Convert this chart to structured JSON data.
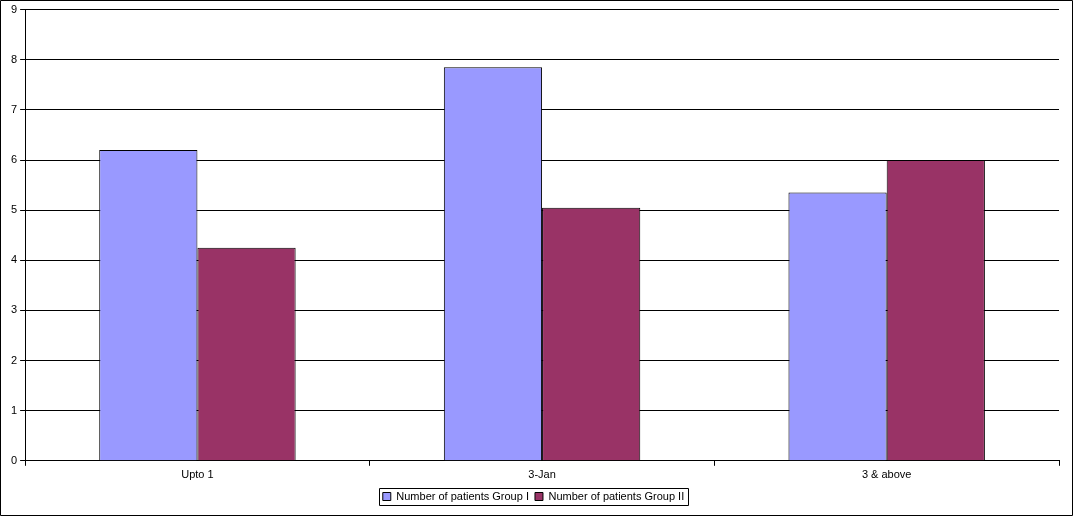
{
  "chart_data": {
    "type": "bar",
    "categories": [
      "Upto 1",
      "3-Jan",
      "3 & above"
    ],
    "series": [
      {
        "name": "Number of patients Group I",
        "color": "#9999ff",
        "values": [
          6.2,
          7.85,
          5.35
        ]
      },
      {
        "name": "Number of patients Group II",
        "color": "#993366",
        "values": [
          4.25,
          5.05,
          6.0
        ]
      }
    ],
    "ylim": [
      0,
      9
    ],
    "yticks": [
      0,
      1,
      2,
      3,
      4,
      5,
      6,
      7,
      8,
      9
    ],
    "grid": "y",
    "legend": "bottom"
  }
}
